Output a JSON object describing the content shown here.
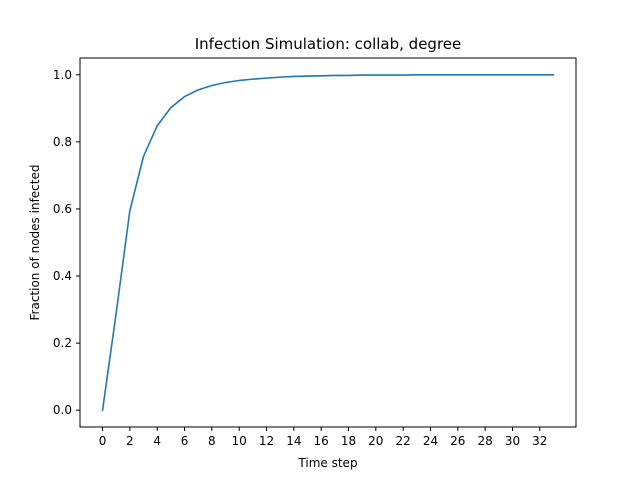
{
  "chart_data": {
    "type": "line",
    "title": "Infection Simulation: collab, degree",
    "xlabel": "Time step",
    "ylabel": "Fraction of nodes infected",
    "xlim": [
      -1.65,
      34.65
    ],
    "ylim": [
      -0.05,
      1.05
    ],
    "xticks": [
      0,
      2,
      4,
      6,
      8,
      10,
      12,
      14,
      16,
      18,
      20,
      22,
      24,
      26,
      28,
      30,
      32
    ],
    "yticks": [
      0.0,
      0.2,
      0.4,
      0.6,
      0.8,
      1.0
    ],
    "ytick_labels": [
      "0.0",
      "0.2",
      "0.4",
      "0.6",
      "0.8",
      "1.0"
    ],
    "grid": false,
    "series": [
      {
        "color": "#1f77b4",
        "x": [
          0,
          1,
          2,
          3,
          4,
          5,
          6,
          7,
          8,
          9,
          10,
          11,
          12,
          13,
          14,
          15,
          16,
          17,
          18,
          19,
          20,
          21,
          22,
          23,
          24,
          25,
          26,
          27,
          28,
          29,
          30,
          31,
          32,
          33
        ],
        "y": [
          0.0,
          0.29,
          0.595,
          0.757,
          0.848,
          0.902,
          0.935,
          0.955,
          0.968,
          0.977,
          0.983,
          0.987,
          0.99,
          0.993,
          0.995,
          0.996,
          0.997,
          0.998,
          0.998,
          0.999,
          0.999,
          0.999,
          0.999,
          1.0,
          1.0,
          1.0,
          1.0,
          1.0,
          1.0,
          1.0,
          1.0,
          1.0,
          1.0,
          1.0
        ]
      }
    ]
  }
}
